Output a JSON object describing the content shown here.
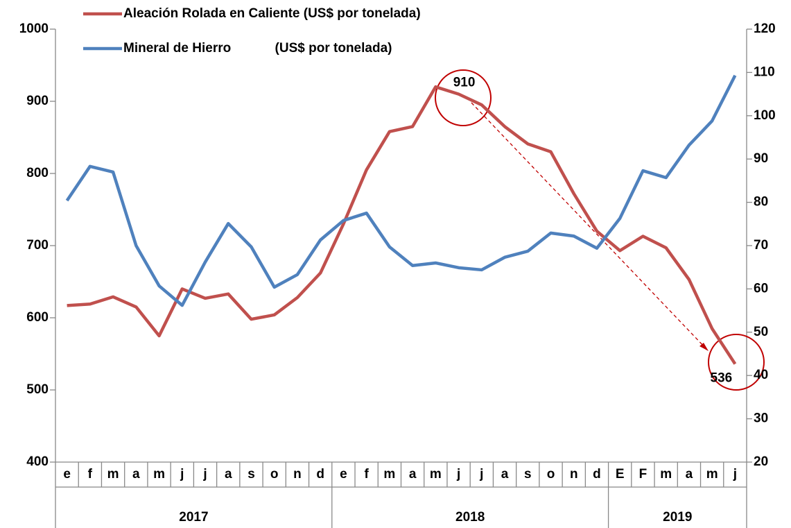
{
  "chart_data": {
    "type": "line",
    "groups": [
      {
        "name": "2017",
        "categories": [
          "e",
          "f",
          "m",
          "a",
          "m",
          "j",
          "j",
          "a",
          "s",
          "o",
          "n",
          "d"
        ]
      },
      {
        "name": "2018",
        "categories": [
          "e",
          "f",
          "m",
          "a",
          "m",
          "j",
          "j",
          "a",
          "s",
          "o",
          "n",
          "d"
        ]
      },
      {
        "name": "2019",
        "categories": [
          "E",
          "F",
          "m",
          "a",
          "m",
          "j"
        ]
      }
    ],
    "series": [
      {
        "name": "Aleación Rolada en Caliente (US$ por tonelada)",
        "color": "#c0504d",
        "values": [
          617,
          619,
          629,
          615,
          575,
          640,
          627,
          633,
          598,
          604,
          628,
          662,
          730,
          805,
          858,
          865,
          920,
          910,
          895,
          865,
          841,
          830,
          772,
          720,
          693,
          713,
          697,
          653,
          585,
          536
        ],
        "value_labels": [
          null,
          null,
          null,
          null,
          null,
          null,
          null,
          null,
          null,
          null,
          null,
          null,
          null,
          null,
          null,
          null,
          null,
          "910",
          null,
          null,
          null,
          null,
          null,
          null,
          null,
          null,
          null,
          null,
          null,
          "536"
        ]
      },
      {
        "name": "Mineral de Hierro            (US$ por tonelada)",
        "color": "#4f81bd",
        "axis": "y2",
        "values": [
          80.4,
          88.3,
          87,
          70,
          60.7,
          56.2,
          66.2,
          75.1,
          69.7,
          60.4,
          63.3,
          71.3,
          75.8,
          77.5,
          69.7,
          65.4,
          66,
          64.9,
          64.4,
          67.3,
          68.7,
          72.9,
          72.2,
          69.4,
          76.3,
          87.3,
          85.7,
          93.2,
          98.8,
          109.3
        ]
      }
    ],
    "ylim": [
      400,
      1000
    ],
    "yticks": [
      400,
      500,
      600,
      700,
      800,
      900,
      1000
    ],
    "y2lim": [
      20,
      120
    ],
    "y2ticks": [
      20,
      30,
      40,
      50,
      60,
      70,
      80,
      90,
      100,
      110,
      120
    ]
  }
}
